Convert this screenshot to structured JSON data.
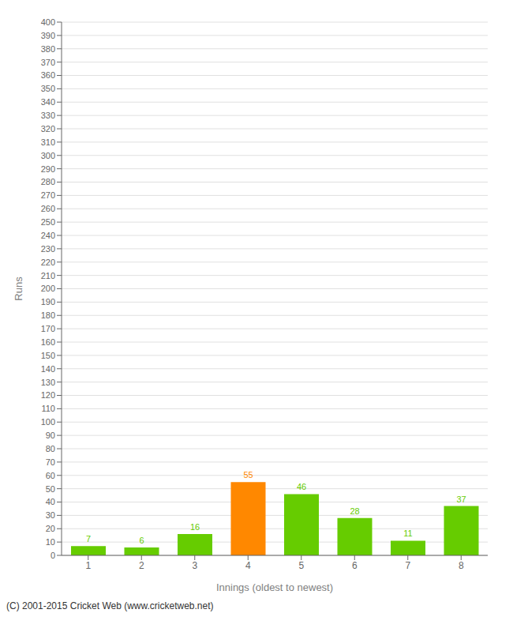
{
  "chart_data": {
    "type": "bar",
    "categories": [
      1,
      2,
      3,
      4,
      5,
      6,
      7,
      8
    ],
    "values": [
      7,
      6,
      16,
      55,
      46,
      28,
      11,
      37
    ],
    "colors": [
      "#66cc00",
      "#66cc00",
      "#66cc00",
      "#ff8800",
      "#66cc00",
      "#66cc00",
      "#66cc00",
      "#66cc00"
    ],
    "xlabel": "Innings (oldest to newest)",
    "ylabel": "Runs",
    "ylim": [
      0,
      400
    ],
    "yticks": [
      0,
      10,
      20,
      30,
      40,
      50,
      60,
      70,
      80,
      90,
      100,
      110,
      120,
      130,
      140,
      150,
      160,
      170,
      180,
      190,
      200,
      210,
      220,
      230,
      240,
      250,
      260,
      270,
      280,
      290,
      300,
      310,
      320,
      330,
      340,
      350,
      360,
      370,
      380,
      390,
      400
    ],
    "grid": true,
    "data_labels": true,
    "annotations": [
      "(C) 2001-2015 Cricket Web (www.cricketweb.net)"
    ]
  }
}
